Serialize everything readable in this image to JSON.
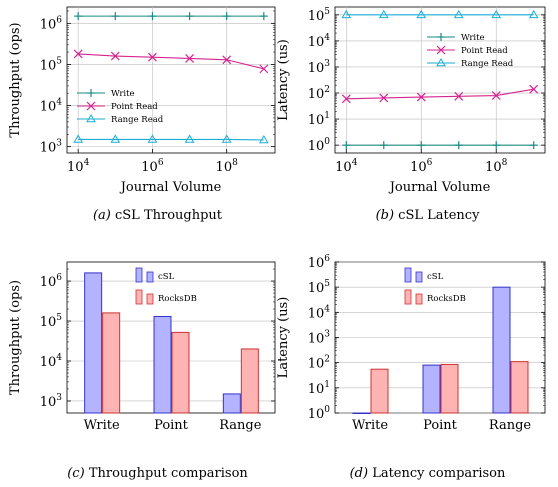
{
  "chart_data": [
    {
      "id": "a",
      "type": "line",
      "caption": {
        "tag": "(a)",
        "text": "cSL Throughput"
      },
      "xlabel": "Journal Volume",
      "ylabel": "Throughput (ops)",
      "xscale": "log",
      "yscale": "log",
      "xlim": [
        5000,
        2000000000
      ],
      "ylim": [
        700,
        2500000
      ],
      "xticks": [
        10000,
        1000000,
        100000000
      ],
      "xticklabels": [
        "10^4",
        "10^6",
        "10^8"
      ],
      "yticks": [
        1000,
        10000,
        100000,
        1000000
      ],
      "yticklabels": [
        "10^3",
        "10^4",
        "10^5",
        "10^6"
      ],
      "grid": true,
      "legend": "middle-left",
      "x": [
        10000,
        100000,
        1000000,
        10000000,
        100000000,
        1000000000
      ],
      "series": [
        {
          "name": "Write",
          "color": "#1a8a84",
          "marker": "plus",
          "values": [
            1500000,
            1500000,
            1500000,
            1500000,
            1500000,
            1500000
          ]
        },
        {
          "name": "Point Read",
          "color": "#d6248f",
          "marker": "cross",
          "values": [
            180000,
            160000,
            150000,
            140000,
            130000,
            78000
          ]
        },
        {
          "name": "Range Read",
          "color": "#1aaed6",
          "marker": "triangle",
          "values": [
            1500,
            1500,
            1500,
            1500,
            1500,
            1450
          ]
        }
      ]
    },
    {
      "id": "b",
      "type": "line",
      "caption": {
        "tag": "(b)",
        "text": "cSL Latency"
      },
      "xlabel": "Journal Volume",
      "ylabel": "Latency (us)",
      "xscale": "log",
      "yscale": "log",
      "xlim": [
        5000,
        2000000000
      ],
      "ylim": [
        0.5,
        200000
      ],
      "xticks": [
        10000,
        1000000,
        100000000
      ],
      "xticklabels": [
        "10^4",
        "10^6",
        "10^8"
      ],
      "yticks": [
        1,
        10,
        100,
        1000,
        10000,
        100000
      ],
      "yticklabels": [
        "10^0",
        "10^1",
        "10^2",
        "10^3",
        "10^4",
        "10^5"
      ],
      "grid": true,
      "legend": "upper-right",
      "x": [
        10000,
        100000,
        1000000,
        10000000,
        100000000,
        1000000000
      ],
      "series": [
        {
          "name": "Write",
          "color": "#1a8a84",
          "marker": "plus",
          "values": [
            1,
            1,
            1,
            1,
            1,
            1
          ]
        },
        {
          "name": "Point Read",
          "color": "#d6248f",
          "marker": "cross",
          "values": [
            60,
            65,
            70,
            75,
            80,
            140
          ]
        },
        {
          "name": "Range Read",
          "color": "#1aaed6",
          "marker": "triangle",
          "values": [
            100000,
            100000,
            100000,
            100000,
            100000,
            100000
          ]
        }
      ]
    },
    {
      "id": "c",
      "type": "bar",
      "caption": {
        "tag": "(c)",
        "text": "Throughput comparison"
      },
      "xlabel": "",
      "ylabel": "Throughput (ops)",
      "yscale": "log",
      "ylim": [
        500,
        3000000
      ],
      "yticks": [
        1000,
        10000,
        100000,
        1000000
      ],
      "yticklabels": [
        "10^3",
        "10^4",
        "10^5",
        "10^6"
      ],
      "grid": true,
      "legend": "top-center",
      "categories": [
        "Write",
        "Point",
        "Range"
      ],
      "series": [
        {
          "name": "cSL",
          "fill": "#b3b3ff",
          "stroke": "#3333cc",
          "values": [
            1600000,
            130000,
            1500
          ]
        },
        {
          "name": "RocksDB",
          "fill": "#ffb3b3",
          "stroke": "#cc3333",
          "values": [
            160000,
            52000,
            20000
          ]
        }
      ]
    },
    {
      "id": "d",
      "type": "bar",
      "caption": {
        "tag": "(d)",
        "text": "Latency comparison"
      },
      "xlabel": "",
      "ylabel": "Latency (us)",
      "yscale": "log",
      "ylim": [
        1,
        1000000
      ],
      "yticks": [
        1,
        10,
        100,
        1000,
        10000,
        100000,
        1000000
      ],
      "yticklabels": [
        "10^0",
        "10^1",
        "10^2",
        "10^3",
        "10^4",
        "10^5",
        "10^6"
      ],
      "grid": true,
      "legend": "top-center",
      "categories": [
        "Write",
        "Point",
        "Range"
      ],
      "series": [
        {
          "name": "cSL",
          "fill": "#b3b3ff",
          "stroke": "#3333cc",
          "values": [
            1,
            80,
            100000
          ]
        },
        {
          "name": "RocksDB",
          "fill": "#ffb3b3",
          "stroke": "#cc3333",
          "values": [
            55,
            85,
            110
          ]
        }
      ]
    }
  ]
}
